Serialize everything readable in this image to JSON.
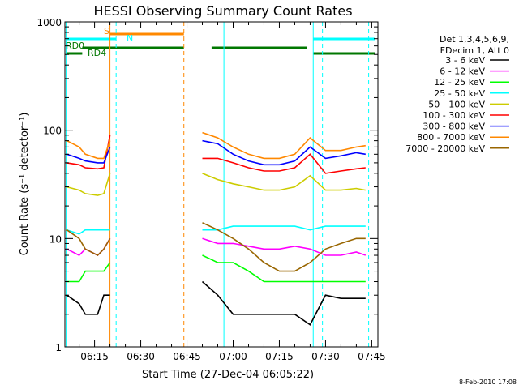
{
  "chart_data": {
    "type": "line",
    "title": "HESSI Observing Summary Count Rates",
    "xlabel": "Start Time (27-Dec-04 06:05:22)",
    "ylabel": "Count Rate (s⁻¹ detector⁻¹)",
    "y_scale": "log",
    "ylim": [
      1,
      1000
    ],
    "xlim": [
      "06:05:22",
      "07:47:00"
    ],
    "grid": false,
    "x_ticks": [
      "06:15",
      "06:30",
      "06:45",
      "07:00",
      "07:15",
      "07:30",
      "07:45"
    ],
    "y_ticks": [
      "1",
      "10",
      "100",
      "1000"
    ],
    "legend": {
      "placement": "right",
      "header": [
        "Det 1,3,4,5,6,9,",
        "FDecim 1, Att 0"
      ]
    },
    "x": [
      "06:06",
      "06:10",
      "06:12",
      "06:16",
      "06:18",
      "06:20",
      "06:22",
      "06:50",
      "06:55",
      "07:00",
      "07:05",
      "07:10",
      "07:15",
      "07:20",
      "07:25",
      "07:30",
      "07:35",
      "07:40",
      "07:43"
    ],
    "series": [
      {
        "name": "3 - 6 keV",
        "color": "#000000",
        "values": [
          3,
          2.5,
          2,
          2,
          3,
          3,
          null,
          4,
          3,
          2,
          2,
          2,
          2,
          2,
          1.6,
          3,
          2.8,
          2.8,
          2.8
        ]
      },
      {
        "name": "6 - 12 keV",
        "color": "#ff00ff",
        "values": [
          8,
          7,
          8,
          7,
          8,
          10,
          null,
          10,
          9,
          9,
          8.5,
          8,
          8,
          8.5,
          8,
          7,
          7,
          7.5,
          7
        ]
      },
      {
        "name": "12 - 25 keV",
        "color": "#00ff00",
        "values": [
          4,
          4,
          5,
          5,
          5,
          6,
          null,
          7,
          6,
          6,
          5,
          4,
          4,
          4,
          4,
          4,
          4,
          4,
          4
        ]
      },
      {
        "name": "25 - 50 keV",
        "color": "#00ffff",
        "values": [
          12,
          11,
          12,
          12,
          12,
          12,
          null,
          12,
          12,
          13,
          13,
          13,
          13,
          13,
          12,
          13,
          13,
          13,
          13
        ]
      },
      {
        "name": "50 - 100 keV",
        "color": "#cccc00",
        "values": [
          30,
          28,
          26,
          25,
          26,
          40,
          null,
          40,
          35,
          32,
          30,
          28,
          28,
          30,
          38,
          28,
          28,
          29,
          28
        ]
      },
      {
        "name": "100 - 300 keV",
        "color": "#ff0000",
        "values": [
          50,
          48,
          45,
          44,
          45,
          90,
          null,
          55,
          55,
          50,
          45,
          42,
          42,
          45,
          60,
          40,
          42,
          44,
          45
        ]
      },
      {
        "name": "300 - 800 keV",
        "color": "#0000ff",
        "values": [
          60,
          55,
          52,
          50,
          50,
          70,
          null,
          80,
          75,
          60,
          52,
          48,
          48,
          52,
          70,
          55,
          58,
          62,
          60
        ]
      },
      {
        "name": "800 - 7000 keV",
        "color": "#ff8800",
        "values": [
          80,
          70,
          60,
          55,
          55,
          80,
          null,
          95,
          85,
          70,
          60,
          55,
          55,
          60,
          85,
          65,
          65,
          70,
          72
        ]
      },
      {
        "name": "7000 - 20000 keV",
        "color": "#996600",
        "values": [
          12,
          10,
          8,
          7,
          8,
          10,
          null,
          14,
          12,
          10,
          8,
          6,
          5,
          5,
          6,
          8,
          9,
          10,
          10
        ]
      }
    ],
    "flag_labels": [
      "S",
      "N",
      "RD0",
      "RD4"
    ],
    "timestamp": "8-Feb-2010 17:08"
  }
}
